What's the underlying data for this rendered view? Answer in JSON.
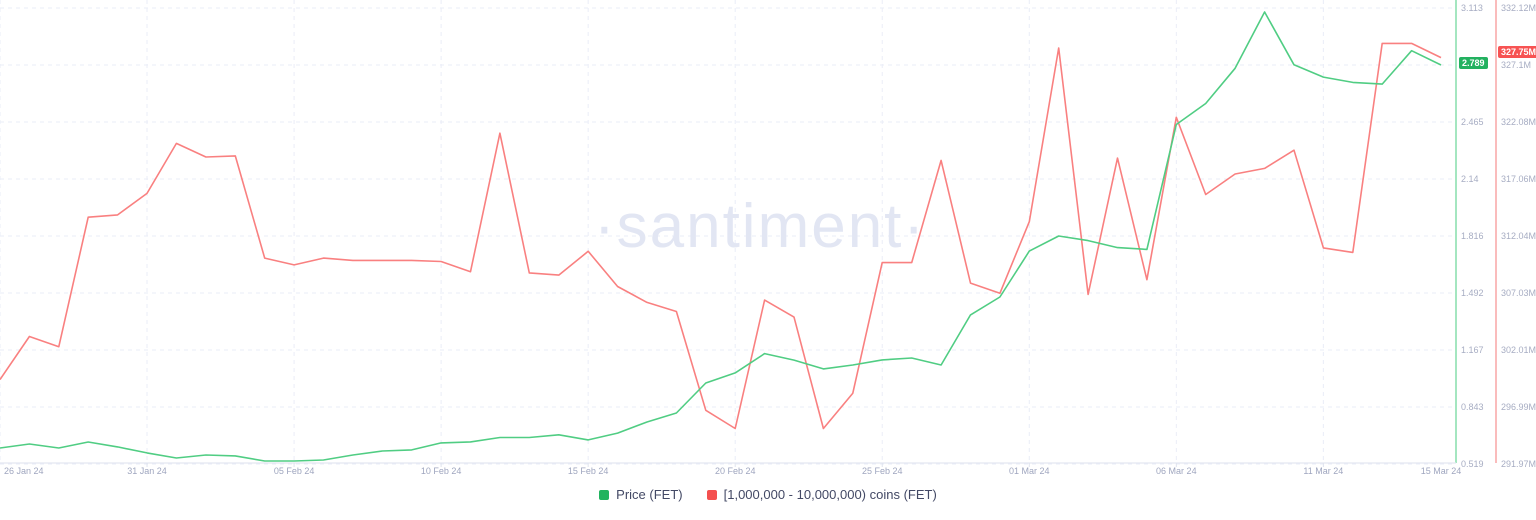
{
  "watermark": "·santiment·",
  "badges": {
    "price": "2.789",
    "coins": "327.75M"
  },
  "legend": {
    "items": [
      {
        "label": "Price (FET)",
        "color": "#21b35e"
      },
      {
        "label": "[1,000,000 - 10,000,000) coins (FET)",
        "color": "#f4504f"
      }
    ]
  },
  "colors": {
    "price_line": "#50cd83",
    "coins_line": "#f98080",
    "price_axis_line": "#8ee0b1",
    "coins_axis_line": "#f8abab",
    "price_badge_bg": "#23b160",
    "coins_badge_bg": "#f75353",
    "grid": "#eaedf7",
    "baseline": "#e3e7f1",
    "axis_tick": "#dfe3ee",
    "tick_label": "#a7adc3",
    "x_label": "#9fa6bf",
    "legend_text": "#434965",
    "watermark": "#e2e6f3"
  },
  "chart_data": {
    "type": "line",
    "grid": true,
    "legend_position": "bottom",
    "x_dates": [
      "26 Jan 24",
      "27 Jan 24",
      "28 Jan 24",
      "29 Jan 24",
      "30 Jan 24",
      "31 Jan 24",
      "01 Feb 24",
      "02 Feb 24",
      "03 Feb 24",
      "04 Feb 24",
      "05 Feb 24",
      "06 Feb 24",
      "07 Feb 24",
      "08 Feb 24",
      "09 Feb 24",
      "10 Feb 24",
      "11 Feb 24",
      "12 Feb 24",
      "13 Feb 24",
      "14 Feb 24",
      "15 Feb 24",
      "16 Feb 24",
      "17 Feb 24",
      "18 Feb 24",
      "19 Feb 24",
      "20 Feb 24",
      "21 Feb 24",
      "22 Feb 24",
      "23 Feb 24",
      "24 Feb 24",
      "25 Feb 24",
      "26 Feb 24",
      "27 Feb 24",
      "28 Feb 24",
      "29 Feb 24",
      "01 Mar 24",
      "02 Mar 24",
      "03 Mar 24",
      "04 Mar 24",
      "05 Mar 24",
      "06 Mar 24",
      "07 Mar 24",
      "08 Mar 24",
      "09 Mar 24",
      "10 Mar 24",
      "11 Mar 24",
      "12 Mar 24",
      "13 Mar 24",
      "14 Mar 24",
      "15 Mar 24"
    ],
    "x_tick_labels": [
      "26 Jan 24",
      "31 Jan 24",
      "05 Feb 24",
      "10 Feb 24",
      "15 Feb 24",
      "20 Feb 24",
      "25 Feb 24",
      "01 Mar 24",
      "06 Mar 24",
      "11 Mar 24",
      "15 Mar 24"
    ],
    "x_tick_indices": [
      0,
      5,
      10,
      15,
      20,
      25,
      30,
      35,
      40,
      45,
      49
    ],
    "series": [
      {
        "name": "Price (FET)",
        "axis": "price",
        "color": "#50cd83",
        "values": [
          0.61,
          0.633,
          0.61,
          0.644,
          0.616,
          0.582,
          0.553,
          0.57,
          0.565,
          0.536,
          0.536,
          0.542,
          0.57,
          0.593,
          0.599,
          0.639,
          0.645,
          0.67,
          0.67,
          0.685,
          0.656,
          0.695,
          0.758,
          0.809,
          0.98,
          1.037,
          1.147,
          1.11,
          1.06,
          1.082,
          1.111,
          1.122,
          1.082,
          1.367,
          1.469,
          1.73,
          1.816,
          1.79,
          1.75,
          1.74,
          2.45,
          2.57,
          2.77,
          3.09,
          2.79,
          2.72,
          2.69,
          2.68,
          2.87,
          2.789
        ]
      },
      {
        "name": "[1,000,000 - 10,000,000) coins (FET)",
        "axis": "coins",
        "color": "#f98080",
        "values": [
          299.4,
          303.2,
          302.3,
          313.7,
          313.9,
          315.8,
          320.2,
          319.0,
          319.1,
          310.1,
          309.5,
          310.1,
          309.9,
          309.9,
          309.9,
          309.8,
          308.9,
          321.1,
          308.8,
          308.6,
          310.7,
          307.6,
          306.2,
          305.4,
          296.7,
          295.1,
          306.4,
          304.9,
          295.1,
          298.2,
          309.7,
          309.7,
          318.7,
          307.9,
          307.0,
          313.3,
          328.6,
          306.9,
          318.9,
          308.2,
          322.5,
          315.7,
          317.5,
          318.0,
          319.6,
          311.0,
          310.6,
          329.0,
          329.0,
          327.75
        ]
      }
    ],
    "axes": {
      "price": {
        "min": 0.519,
        "max": 3.113,
        "tick_labels": [
          "3.113",
          "2.789",
          "2.465",
          "2.14",
          "1.816",
          "1.492",
          "1.167",
          "0.843",
          "0.519"
        ],
        "current": "2.789",
        "current_value": 2.789
      },
      "coins": {
        "min": 291.97,
        "max": 332.12,
        "tick_labels": [
          "332.12M",
          "327.1M",
          "322.08M",
          "317.06M",
          "312.04M",
          "307.03M",
          "302.01M",
          "296.99M",
          "291.97M"
        ],
        "current": "327.75M",
        "current_value": 327.75
      }
    }
  }
}
